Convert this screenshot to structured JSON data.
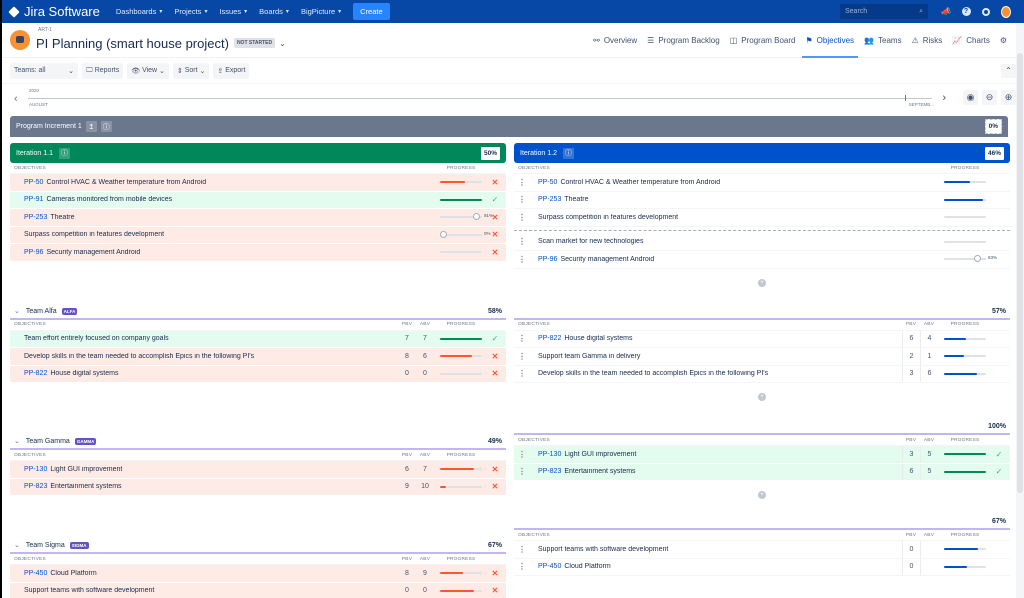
{
  "topnav": {
    "logo": "Jira Software",
    "items": [
      "Dashboards",
      "Projects",
      "Issues",
      "Boards",
      "BigPicture"
    ],
    "create": "Create",
    "search_placeholder": "Search"
  },
  "header": {
    "key": "ART-1",
    "title": "PI Planning (smart house project)",
    "status": "NOT STARTED",
    "tabs": [
      {
        "icon": "⚯",
        "label": "Overview"
      },
      {
        "icon": "☰",
        "label": "Program Backlog"
      },
      {
        "icon": "◫",
        "label": "Program Board"
      },
      {
        "icon": "⚑",
        "label": "Objectives",
        "active": true
      },
      {
        "icon": "👥",
        "label": "Teams"
      },
      {
        "icon": "⚠",
        "label": "Risks"
      },
      {
        "icon": "📈",
        "label": "Charts"
      }
    ]
  },
  "toolbar": {
    "teams": "Teams: all",
    "reports": "Reports",
    "view": "View",
    "sort": "Sort",
    "export": "Export"
  },
  "timeline": {
    "year": "2020",
    "month_start": "AUGUST",
    "month_end": "SEPTEMB..."
  },
  "program_increment": {
    "label": "Program Increment 1",
    "progress": "0%"
  },
  "iterations": [
    {
      "label": "Iteration 1.1",
      "progress": "50%",
      "color": "#00875a",
      "headers": {
        "objectives": "OBJECTIVES",
        "progress": "PROGRESS"
      },
      "rows": [
        {
          "key": "PP-50",
          "text": "Control HVAC & Weather temperature from Android",
          "state": "red",
          "fill": 60
        },
        {
          "key": "PP-91",
          "text": "Cameras monitored from mobile devices",
          "state": "green",
          "fill": 100
        },
        {
          "key": "PP-253",
          "text": "Theatre",
          "state": "red",
          "slider": 91,
          "slider_label": "91%"
        },
        {
          "key": "",
          "text": "Surpass competition in features development",
          "state": "red",
          "slider": 0,
          "slider_label": "0%"
        },
        {
          "key": "PP-96",
          "text": "Security management Android",
          "state": "red",
          "fill": 0
        }
      ]
    },
    {
      "label": "Iteration 1.2",
      "progress": "46%",
      "color": "#0052cc",
      "headers": {
        "objectives": "OBJECTIVES",
        "progress": "PROGRESS"
      },
      "rows": [
        {
          "key": "PP-50",
          "text": "Control HVAC & Weather temperature from Android",
          "fill": 62
        },
        {
          "key": "PP-253",
          "text": "Theatre",
          "fill": 92
        },
        {
          "key": "",
          "text": "Surpass competition in features development",
          "fill": 0
        },
        {
          "key": "",
          "text": "Scan market for new technologies",
          "fill": 0
        },
        {
          "key": "PP-96",
          "text": "Security management Android",
          "slider": 83,
          "slider_label": "83%"
        }
      ]
    }
  ],
  "teams": [
    {
      "name": "Team Alfa",
      "badge": "ALFA",
      "left": {
        "progress": "58%",
        "rows": [
          {
            "key": "",
            "text": "Team effort entirely focused on company goals",
            "pbv": "7",
            "abv": "7",
            "state": "green",
            "fill": 100
          },
          {
            "key": "",
            "text": "Develop skills in the team needed to accomplish Epics in the following PI's",
            "pbv": "8",
            "abv": "6",
            "state": "red",
            "fill": 75
          },
          {
            "key": "PP-822",
            "text": "House digital systems",
            "pbv": "0",
            "abv": "0",
            "state": "red",
            "fill": 0
          }
        ]
      },
      "right": {
        "progress": "57%",
        "rows": [
          {
            "key": "PP-822",
            "text": "House digital systems",
            "pbv": "6",
            "abv": "4",
            "fill": 52
          },
          {
            "key": "",
            "text": "Support team Gamma in delivery",
            "pbv": "2",
            "abv": "1",
            "fill": 48
          },
          {
            "key": "",
            "text": "Develop skills in the team needed to accomplish Epics in the following PI's",
            "pbv": "3",
            "abv": "6",
            "fill": 78
          }
        ]
      }
    },
    {
      "name": "Team Gamma",
      "badge": "GAMMA",
      "left": {
        "progress": "49%",
        "rows": [
          {
            "key": "PP-130",
            "text": "Light GUI improvement",
            "pbv": "6",
            "abv": "7",
            "state": "red",
            "fill": 82
          },
          {
            "key": "PP-823",
            "text": "Entertainment systems",
            "pbv": "9",
            "abv": "10",
            "state": "red",
            "fill": 15
          }
        ]
      },
      "right": {
        "progress": "100%",
        "rows": [
          {
            "key": "PP-130",
            "text": "Light GUI improvement",
            "pbv": "3",
            "abv": "5",
            "state": "green",
            "fill": 100
          },
          {
            "key": "PP-823",
            "text": "Entertainment systems",
            "pbv": "6",
            "abv": "5",
            "state": "green",
            "fill": 100
          }
        ]
      }
    },
    {
      "name": "Team Sigma",
      "badge": "SIGMA",
      "left": {
        "progress": "67%",
        "rows": [
          {
            "key": "PP-450",
            "text": "Cloud Platform",
            "pbv": "8",
            "abv": "9",
            "state": "red",
            "fill": 55
          },
          {
            "key": "",
            "text": "Support teams with software development",
            "pbv": "0",
            "abv": "0",
            "state": "red",
            "fill": 80
          }
        ]
      },
      "right": {
        "progress": "67%",
        "rows": [
          {
            "key": "",
            "text": "Support teams with software development",
            "pbv": "0",
            "abv": "",
            "fill": 80
          },
          {
            "key": "PP-450",
            "text": "Cloud Platform",
            "pbv": "0",
            "abv": "",
            "fill": 55
          }
        ]
      }
    }
  ],
  "team_headers": {
    "objectives": "OBJECTIVES",
    "pbv": "PBV",
    "abv": "ABV",
    "progress": "PROGRESS"
  },
  "colors": {
    "nav": "#0747a6",
    "accent": "#0052cc",
    "success": "#00875a",
    "danger": "#ff5630",
    "pi_bar": "#6b778c",
    "team_badge": "#6554c0"
  }
}
